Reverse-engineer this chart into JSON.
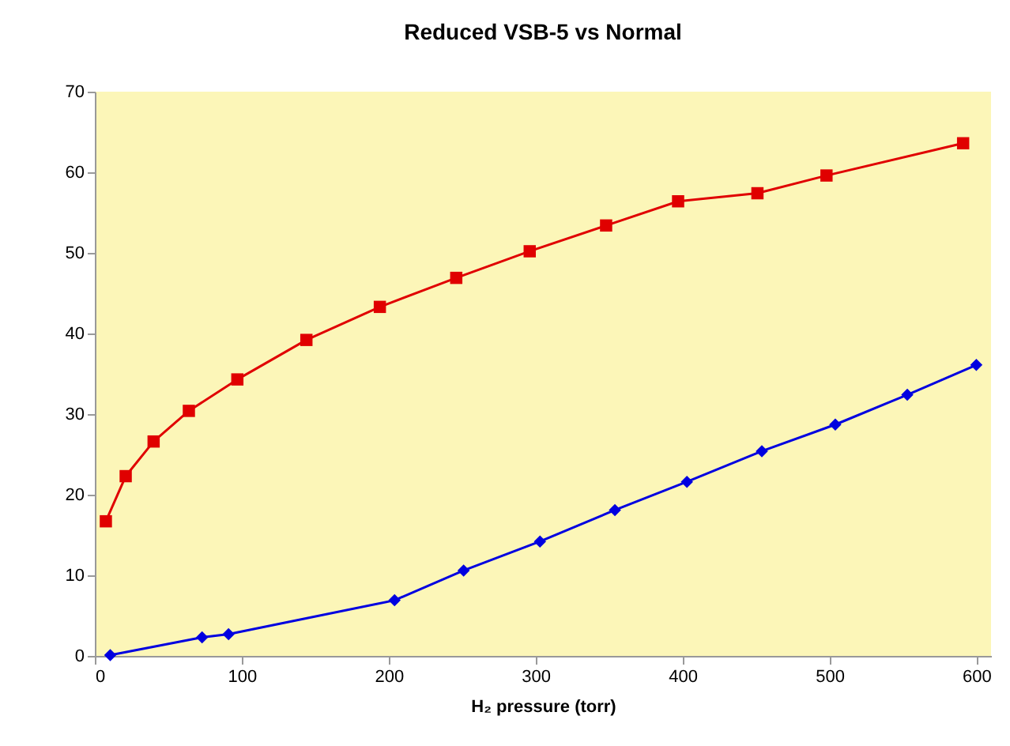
{
  "chart_data": {
    "type": "line",
    "title": "Reduced VSB-5 vs Normal",
    "xlabel": "H₂ pressure (torr)",
    "xlim": [
      0,
      610
    ],
    "xticks": [
      0,
      100,
      200,
      300,
      400,
      500,
      600
    ],
    "ylim": [
      0,
      70
    ],
    "yticks": [
      0,
      10,
      20,
      30,
      40,
      50,
      60,
      70
    ],
    "grid": false,
    "series": [
      {
        "color": "#e00000",
        "marker": "square",
        "x": [
          7.5,
          21,
          40,
          64,
          97,
          144,
          194,
          246,
          296,
          348,
          397,
          451,
          498,
          591
        ],
        "values": [
          16.7,
          22.3,
          26.6,
          30.4,
          34.3,
          39.2,
          43.3,
          46.9,
          50.2,
          53.4,
          56.4,
          57.4,
          59.6,
          63.6
        ]
      },
      {
        "color": "#0000e0",
        "marker": "diamond",
        "x": [
          10.5,
          73,
          91,
          204,
          251,
          303,
          354,
          403,
          454,
          504,
          553,
          600
        ],
        "values": [
          0.1,
          2.3,
          2.7,
          6.9,
          10.6,
          14.2,
          18.1,
          21.6,
          25.4,
          28.7,
          32.4,
          36.1
        ]
      }
    ]
  }
}
